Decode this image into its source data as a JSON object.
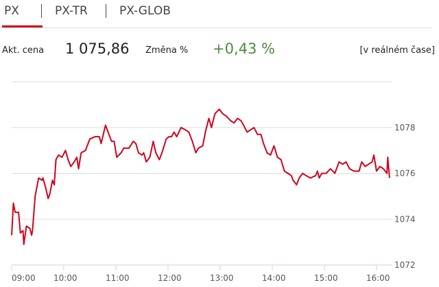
{
  "tabs": [
    {
      "label": "PX",
      "active": true
    },
    {
      "label": "PX-TR",
      "active": false
    },
    {
      "label": "PX-GLOB",
      "active": false
    }
  ],
  "quote": {
    "price_label": "Akt. cena",
    "price": "1 075,86",
    "change_label": "Změna %",
    "change": "+0,43 %",
    "realtime": "[v reálném čase]"
  },
  "colors": {
    "accent": "#d0021b",
    "positive": "#4a8a3f",
    "grid": "#dddddd"
  },
  "chart_data": {
    "type": "line",
    "title": "",
    "xlabel": "",
    "ylabel": "",
    "xlim": [
      "09:00",
      "16:23"
    ],
    "ylim": [
      1072,
      1080
    ],
    "grid": true,
    "y_ticks": [
      "1072",
      "1074",
      "1076",
      "1078"
    ],
    "x_ticks": [
      "09:00",
      "10:00",
      "11:00",
      "12:00",
      "13:00",
      "14:00",
      "15:00",
      "16:00"
    ],
    "series_color": "#d0021b",
    "x": [
      "09:00",
      "09:02",
      "09:04",
      "09:08",
      "09:10",
      "09:13",
      "09:14",
      "09:17",
      "09:21",
      "09:23",
      "09:24",
      "09:27",
      "09:31",
      "09:35",
      "09:36",
      "09:39",
      "09:42",
      "09:44",
      "09:47",
      "09:49",
      "09:51",
      "09:54",
      "09:58",
      "10:02",
      "10:05",
      "10:08",
      "10:12",
      "10:15",
      "10:17",
      "10:20",
      "10:25",
      "10:30",
      "10:36",
      "10:41",
      "10:43",
      "10:48",
      "10:51",
      "10:55",
      "10:58",
      "11:01",
      "11:06",
      "11:09",
      "11:15",
      "11:20",
      "11:23",
      "11:26",
      "11:30",
      "11:32",
      "11:35",
      "11:39",
      "11:43",
      "11:46",
      "11:50",
      "11:53",
      "11:58",
      "12:01",
      "12:04",
      "12:07",
      "12:10",
      "12:15",
      "12:20",
      "12:24",
      "12:28",
      "12:32",
      "12:35",
      "12:40",
      "12:43",
      "12:47",
      "12:50",
      "12:54",
      "12:59",
      "13:03",
      "13:07",
      "13:12",
      "13:16",
      "13:20",
      "13:24",
      "13:27",
      "13:31",
      "13:35",
      "13:39",
      "13:43",
      "13:47",
      "13:50",
      "13:54",
      "13:58",
      "14:02",
      "14:06",
      "14:10",
      "14:14",
      "14:18",
      "14:22",
      "14:24",
      "14:28",
      "14:31",
      "14:35",
      "14:39",
      "14:44",
      "14:50",
      "14:52",
      "14:54",
      "14:57",
      "15:02",
      "15:07",
      "15:12",
      "15:17",
      "15:21",
      "15:25",
      "15:29",
      "15:34",
      "15:40",
      "15:43",
      "15:47",
      "15:51",
      "15:55",
      "15:57",
      "16:00",
      "16:04",
      "16:08",
      "16:12",
      "16:13",
      "16:15"
    ],
    "values": [
      1073.3,
      1074.7,
      1074.3,
      1074.3,
      1073.4,
      1073.5,
      1072.9,
      1073.7,
      1073.6,
      1073.3,
      1073.5,
      1075.0,
      1075.8,
      1075.7,
      1075.8,
      1075.4,
      1074.9,
      1075.1,
      1075.7,
      1075.5,
      1076.6,
      1076.8,
      1076.7,
      1077.0,
      1076.6,
      1076.3,
      1076.5,
      1076.7,
      1076.2,
      1076.9,
      1077.0,
      1077.5,
      1077.6,
      1077.6,
      1077.3,
      1078.1,
      1077.8,
      1077.4,
      1077.4,
      1076.7,
      1076.9,
      1077.1,
      1077.1,
      1077.4,
      1077.3,
      1076.9,
      1076.8,
      1076.9,
      1076.5,
      1076.7,
      1077.4,
      1076.9,
      1076.6,
      1076.9,
      1077.5,
      1077.6,
      1077.6,
      1077.8,
      1077.6,
      1078.0,
      1077.9,
      1077.8,
      1077.4,
      1076.9,
      1077.1,
      1077.2,
      1077.8,
      1078.4,
      1078.0,
      1078.6,
      1078.8,
      1078.6,
      1078.5,
      1078.3,
      1078.2,
      1078.4,
      1078.3,
      1078.1,
      1077.8,
      1077.9,
      1078.0,
      1077.7,
      1077.7,
      1077.3,
      1076.9,
      1076.8,
      1077.2,
      1076.7,
      1076.6,
      1076.1,
      1076.0,
      1075.9,
      1075.7,
      1075.5,
      1075.8,
      1076.0,
      1075.9,
      1075.8,
      1075.9,
      1076.1,
      1075.8,
      1076.0,
      1076.0,
      1076.2,
      1076.0,
      1076.5,
      1076.4,
      1076.5,
      1076.2,
      1076.1,
      1076.1,
      1076.5,
      1076.3,
      1076.4,
      1076.5,
      1076.8,
      1076.1,
      1076.3,
      1076.2,
      1076.0,
      1076.7,
      1075.8
    ]
  }
}
